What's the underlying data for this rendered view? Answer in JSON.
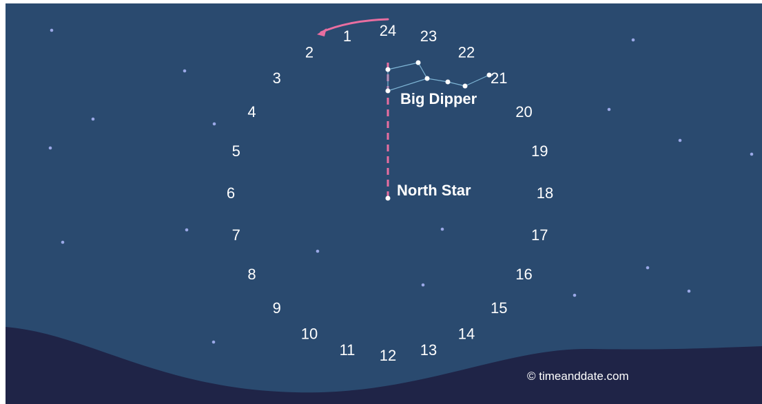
{
  "clock": {
    "hours": [
      "1",
      "2",
      "3",
      "4",
      "5",
      "6",
      "7",
      "8",
      "9",
      "10",
      "11",
      "12",
      "13",
      "14",
      "15",
      "16",
      "17",
      "18",
      "19",
      "20",
      "21",
      "22",
      "23",
      "24"
    ]
  },
  "labels": {
    "big_dipper": "Big Dipper",
    "north_star": "North Star"
  },
  "credit": "© timeanddate.com",
  "colors": {
    "sky": "#2a4a6f",
    "ground": "#1f2447",
    "pointer": "#e96ea0",
    "arrow": "#e96ea0",
    "constellation_line": "#7fb6d6",
    "background_star": "#9aa8e6"
  }
}
